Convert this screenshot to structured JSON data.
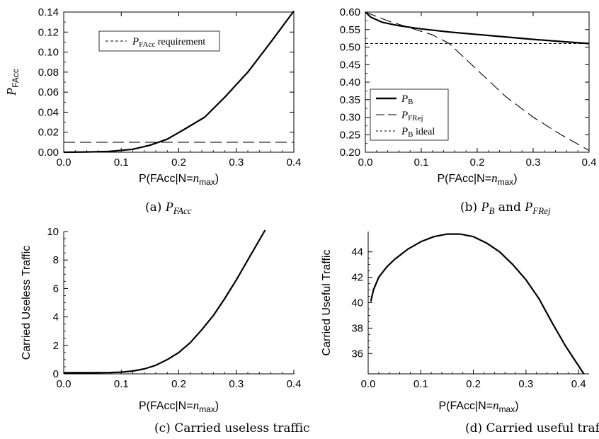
{
  "chart_data": [
    {
      "id": "a",
      "type": "line",
      "xlabel": "P(FAcc|N=n_max)",
      "xlabel_parts": {
        "pre": "P(FAcc|N=",
        "var": "n",
        "sub": "max",
        "post": ")"
      },
      "ylabel_parts": {
        "var": "P",
        "sub": "FAcc"
      },
      "xlim": [
        0,
        0.4
      ],
      "ylim": [
        0,
        0.14
      ],
      "xticks": [
        "0.0",
        "0.1",
        "0.2",
        "0.3",
        "0.4"
      ],
      "yticks": [
        "0.00",
        "0.02",
        "0.04",
        "0.06",
        "0.08",
        "0.10",
        "0.12",
        "0.14"
      ],
      "series": [
        {
          "x": [
            0,
            0.04,
            0.08,
            0.12,
            0.15,
            0.18,
            0.21,
            0.245,
            0.28,
            0.32,
            0.36,
            0.4
          ],
          "y": [
            0,
            0.0003,
            0.0008,
            0.003,
            0.007,
            0.013,
            0.023,
            0.035,
            0.055,
            0.08,
            0.11,
            0.141
          ],
          "style": "solid"
        },
        {
          "name": "P_FAcc requirement",
          "x": [
            0,
            0.4
          ],
          "y": [
            0.01,
            0.01
          ],
          "style": "dashed"
        }
      ],
      "legend": {
        "position": "top",
        "entries": [
          {
            "var": "P",
            "sub": "FAcc",
            "text": "requirement",
            "style": "dashed"
          }
        ]
      },
      "caption": {
        "pre": "(a) ",
        "var": "P",
        "sub": "FAcc"
      }
    },
    {
      "id": "b",
      "type": "line",
      "xlabel": "P(FAcc|N=n_max)",
      "xlabel_parts": {
        "pre": "P(FAcc|N=",
        "var": "n",
        "sub": "max",
        "post": ")"
      },
      "xlim": [
        0,
        0.4
      ],
      "ylim": [
        0.2,
        0.6
      ],
      "xticks": [
        "0.0",
        "0.1",
        "0.2",
        "0.3",
        "0.4"
      ],
      "yticks": [
        "0.20",
        "0.25",
        "0.30",
        "0.35",
        "0.40",
        "0.45",
        "0.50",
        "0.55",
        "0.60"
      ],
      "series": [
        {
          "name": "P_B",
          "x": [
            0,
            0.01,
            0.03,
            0.06,
            0.1,
            0.15,
            0.2,
            0.25,
            0.3,
            0.35,
            0.4
          ],
          "y": [
            0.6,
            0.585,
            0.571,
            0.561,
            0.552,
            0.543,
            0.536,
            0.529,
            0.522,
            0.516,
            0.51
          ],
          "style": "solid"
        },
        {
          "name": "P_FRej",
          "x": [
            0,
            0.04,
            0.08,
            0.12,
            0.15,
            0.2,
            0.25,
            0.3,
            0.35,
            0.4
          ],
          "y": [
            0.6,
            0.575,
            0.555,
            0.535,
            0.51,
            0.435,
            0.36,
            0.3,
            0.25,
            0.205
          ],
          "style": "dashed"
        },
        {
          "name": "P_B ideal",
          "x": [
            0,
            0.4
          ],
          "y": [
            0.51,
            0.51
          ],
          "style": "dotted"
        }
      ],
      "legend": {
        "position": "bottom-left",
        "entries": [
          {
            "var": "P",
            "sub": "B",
            "text": "",
            "style": "solid"
          },
          {
            "var": "P",
            "sub": "FRej",
            "text": "",
            "style": "dashed"
          },
          {
            "var": "P",
            "sub": "B",
            "text": "ideal",
            "style": "dotted"
          }
        ]
      },
      "caption": {
        "pre": "(b) ",
        "var": "P",
        "sub": "B",
        "mid": " and ",
        "var2": "P",
        "sub2": "FRej"
      }
    },
    {
      "id": "c",
      "type": "line",
      "xlabel": "P(FAcc|N=n_max)",
      "xlabel_parts": {
        "pre": "P(FAcc|N=",
        "var": "n",
        "sub": "max",
        "post": ")"
      },
      "ylabel": "Carried Useless Traffic",
      "xlim": [
        0,
        0.4
      ],
      "ylim": [
        0,
        10
      ],
      "xticks": [
        "0.0",
        "0.1",
        "0.2",
        "0.3",
        "0.4"
      ],
      "yticks": [
        "0",
        "2",
        "4",
        "6",
        "8",
        "10"
      ],
      "series": [
        {
          "x": [
            0,
            0.05,
            0.08,
            0.1,
            0.12,
            0.14,
            0.16,
            0.18,
            0.2,
            0.22,
            0.24,
            0.26,
            0.28,
            0.3,
            0.32,
            0.35
          ],
          "y": [
            0.08,
            0.08,
            0.09,
            0.12,
            0.2,
            0.35,
            0.6,
            1.0,
            1.5,
            2.2,
            3.1,
            4.1,
            5.3,
            6.6,
            8.0,
            10.1
          ],
          "style": "solid"
        }
      ],
      "caption": {
        "text": "(c) Carried useless traffic"
      }
    },
    {
      "id": "d",
      "type": "line",
      "xlabel": "P(FAcc|N=n_max)",
      "xlabel_parts": {
        "pre": "P(FAcc|N=",
        "var": "n",
        "sub": "max",
        "post": ")"
      },
      "ylabel": "Carried Useful Traffic",
      "xlim": [
        0,
        0.42
      ],
      "ylim": [
        34.4,
        45.6
      ],
      "xticks": [
        "0.0",
        "0.1",
        "0.2",
        "0.3",
        "0.4"
      ],
      "yticks": [
        "36",
        "38",
        "40",
        "42",
        "44"
      ],
      "series": [
        {
          "x": [
            0.005,
            0.01,
            0.02,
            0.035,
            0.05,
            0.075,
            0.1,
            0.125,
            0.15,
            0.175,
            0.2,
            0.225,
            0.25,
            0.275,
            0.3,
            0.325,
            0.35,
            0.375,
            0.41
          ],
          "y": [
            40.1,
            41.0,
            42.0,
            42.8,
            43.4,
            44.2,
            44.8,
            45.2,
            45.4,
            45.4,
            45.2,
            44.7,
            44.0,
            43.0,
            41.8,
            40.3,
            38.4,
            36.6,
            34.4
          ],
          "style": "solid"
        }
      ],
      "caption": {
        "text": "(d) Carried useful traffic"
      }
    }
  ]
}
